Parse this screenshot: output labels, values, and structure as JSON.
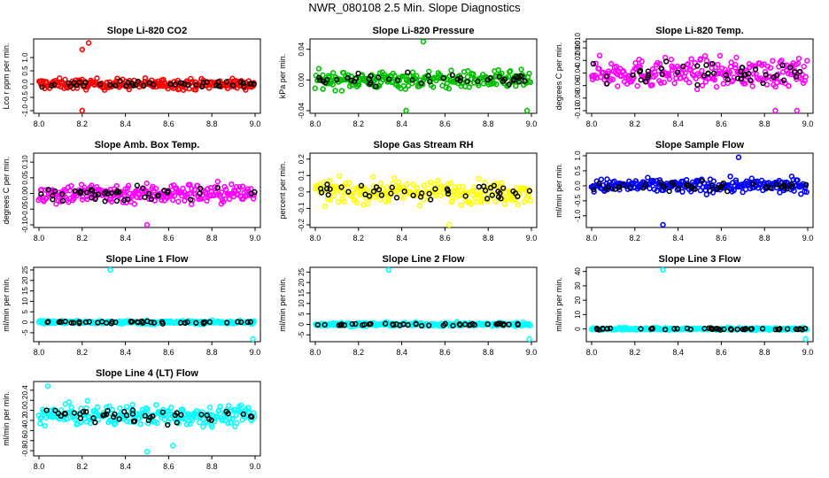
{
  "page_title": "NWR_080108  2.5 Min. Slope Diagnostics",
  "chart_data": [
    {
      "type": "scatter",
      "title": "Slope Li-820 CO2",
      "ylabel": "Lco r ppm per min.",
      "color": "#ff0000",
      "xlim": [
        8.0,
        9.0
      ],
      "ylim": [
        -1.0,
        1.6
      ],
      "xticks": [
        "8.0",
        "8.2",
        "8.4",
        "8.6",
        "8.8",
        "9.0"
      ],
      "yticks": [
        {
          "v": -1.0,
          "t": "-1.0"
        },
        {
          "v": -0.5,
          "t": "-0.5"
        },
        {
          "v": 0.0,
          "t": "0.0"
        },
        {
          "v": 0.5,
          "t": "0.5"
        },
        {
          "v": 1.0,
          "t": "1.0"
        }
      ],
      "outliers": [
        {
          "x": 8.2,
          "y": 1.3
        },
        {
          "x": 8.23,
          "y": 1.55
        },
        {
          "x": 8.2,
          "y": -1.0
        }
      ],
      "center": 0.0,
      "spread": 0.35
    },
    {
      "type": "scatter",
      "title": "Slope Li-820 Pressure",
      "ylabel": "kPa per min.",
      "color": "#00c000",
      "xlim": [
        8.0,
        9.0
      ],
      "ylim": [
        -0.04,
        0.05
      ],
      "xticks": [
        "8.0",
        "8.2",
        "8.4",
        "8.6",
        "8.8",
        "9.0"
      ],
      "yticks": [
        {
          "v": -0.04,
          "t": "-0.04"
        },
        {
          "v": 0.0,
          "t": "0.00"
        },
        {
          "v": 0.04,
          "t": "0.04"
        }
      ],
      "outliers": [
        {
          "x": 8.5,
          "y": 0.05
        },
        {
          "x": 8.42,
          "y": -0.04
        },
        {
          "x": 8.98,
          "y": -0.04
        }
      ],
      "center": 0.0,
      "spread": 0.02
    },
    {
      "type": "scatter",
      "title": "Slope Li-820 Temp.",
      "ylabel": "degrees C per min.",
      "color": "#ff00ff",
      "xlim": [
        8.0,
        9.0
      ],
      "ylim": [
        -0.1,
        0.01
      ],
      "xticks": [
        "8.0",
        "8.2",
        "8.4",
        "8.6",
        "8.8",
        "9.0"
      ],
      "yticks": [
        {
          "v": -0.1,
          "t": "-0.10"
        },
        {
          "v": -0.08,
          "t": "-0.08"
        },
        {
          "v": -0.06,
          "t": "-0.06"
        },
        {
          "v": -0.04,
          "t": "-0.04"
        },
        {
          "v": -0.02,
          "t": "-0.02"
        },
        {
          "v": 0.0,
          "t": "0.00"
        },
        {
          "v": 0.01,
          "t": "0.010"
        }
      ],
      "outliers": [
        {
          "x": 8.85,
          "y": -0.1
        },
        {
          "x": 8.95,
          "y": -0.1
        }
      ],
      "center": -0.04,
      "spread": 0.04
    },
    {
      "type": "scatter",
      "title": "Slope Amb. Box Temp.",
      "ylabel": "degrees C per min.",
      "color": "#ff00ff",
      "xlim": [
        8.0,
        9.0
      ],
      "ylim": [
        -0.1,
        0.12
      ],
      "xticks": [
        "8.0",
        "8.2",
        "8.4",
        "8.6",
        "8.8",
        "9.0"
      ],
      "yticks": [
        {
          "v": -0.1,
          "t": "-0.10"
        },
        {
          "v": -0.05,
          "t": "-0.05"
        },
        {
          "v": 0.0,
          "t": "0.00"
        },
        {
          "v": 0.05,
          "t": "0.05"
        },
        {
          "v": 0.1,
          "t": "0.10"
        }
      ],
      "outliers": [
        {
          "x": 8.5,
          "y": -0.1
        }
      ],
      "center": 0.0,
      "spread": 0.06
    },
    {
      "type": "scatter",
      "title": "Slope Gas Stream RH",
      "ylabel": "percent per min.",
      "color": "#ffff00",
      "xlim": [
        8.0,
        9.0
      ],
      "ylim": [
        -0.2,
        0.22
      ],
      "xticks": [
        "8.0",
        "8.2",
        "8.4",
        "8.6",
        "8.8",
        "9.0"
      ],
      "yticks": [
        {
          "v": -0.2,
          "t": "-0.2"
        },
        {
          "v": -0.1,
          "t": "-0.1"
        },
        {
          "v": 0.0,
          "t": "0.0"
        },
        {
          "v": 0.1,
          "t": "0.1"
        },
        {
          "v": 0.2,
          "t": "0.2"
        }
      ],
      "outliers": [
        {
          "x": 8.62,
          "y": -0.2
        }
      ],
      "center": 0.0,
      "spread": 0.12
    },
    {
      "type": "scatter",
      "title": "Slope Sample Flow",
      "ylabel": "ml/min per min.",
      "color": "#0000ff",
      "xlim": [
        8.0,
        9.0
      ],
      "ylim": [
        -1.3,
        1.0
      ],
      "xticks": [
        "8.0",
        "8.2",
        "8.4",
        "8.6",
        "8.8",
        "9.0"
      ],
      "yticks": [
        {
          "v": -1.0,
          "t": "-1.0"
        },
        {
          "v": -0.5,
          "t": "-0.5"
        },
        {
          "v": 0.0,
          "t": "0.0"
        },
        {
          "v": 0.5,
          "t": "0.5"
        },
        {
          "v": 1.0,
          "t": "1.0"
        }
      ],
      "outliers": [
        {
          "x": 8.33,
          "y": -1.3
        },
        {
          "x": 8.68,
          "y": 0.95
        }
      ],
      "center": 0.0,
      "spread": 0.4
    },
    {
      "type": "scatter",
      "title": "Slope Line 1 Flow",
      "ylabel": "ml/min per min.",
      "color": "#00ffff",
      "xlim": [
        8.0,
        9.0
      ],
      "ylim": [
        -8,
        25
      ],
      "xticks": [
        "8.0",
        "8.2",
        "8.4",
        "8.6",
        "8.8",
        "9.0"
      ],
      "yticks": [
        {
          "v": -5,
          "t": "-5"
        },
        {
          "v": 0,
          "t": "0"
        },
        {
          "v": 5,
          "t": "5"
        },
        {
          "v": 10,
          "t": "10"
        },
        {
          "v": 15,
          "t": "15"
        },
        {
          "v": 20,
          "t": "20"
        },
        {
          "v": 25,
          "t": "25"
        }
      ],
      "outliers": [
        {
          "x": 8.33,
          "y": 25
        },
        {
          "x": 8.99,
          "y": -8
        }
      ],
      "center": 0.0,
      "spread": 1.5
    },
    {
      "type": "scatter",
      "title": "Slope Line 2 Flow",
      "ylabel": "ml/min per min.",
      "color": "#00ffff",
      "xlim": [
        8.0,
        9.0
      ],
      "ylim": [
        -7,
        26
      ],
      "xticks": [
        "8.0",
        "8.2",
        "8.4",
        "8.6",
        "8.8",
        "9.0"
      ],
      "yticks": [
        {
          "v": -5,
          "t": "-5"
        },
        {
          "v": 0,
          "t": "0"
        },
        {
          "v": 5,
          "t": "5"
        },
        {
          "v": 10,
          "t": "10"
        },
        {
          "v": 15,
          "t": "15"
        },
        {
          "v": 20,
          "t": "20"
        },
        {
          "v": 25,
          "t": "25"
        }
      ],
      "outliers": [
        {
          "x": 8.34,
          "y": 26
        },
        {
          "x": 8.99,
          "y": -7
        }
      ],
      "center": 0.0,
      "spread": 1.5
    },
    {
      "type": "scatter",
      "title": "Slope Line 3 Flow",
      "ylabel": "ml/min per min.",
      "color": "#00ffff",
      "xlim": [
        8.0,
        9.0
      ],
      "ylim": [
        -7,
        41
      ],
      "xticks": [
        "8.0",
        "8.2",
        "8.4",
        "8.6",
        "8.8",
        "9.0"
      ],
      "yticks": [
        {
          "v": 0,
          "t": "0"
        },
        {
          "v": 10,
          "t": "10"
        },
        {
          "v": 20,
          "t": "20"
        },
        {
          "v": 30,
          "t": "30"
        },
        {
          "v": 40,
          "t": "40"
        }
      ],
      "outliers": [
        {
          "x": 8.33,
          "y": 41
        },
        {
          "x": 8.99,
          "y": -7
        }
      ],
      "center": 0.0,
      "spread": 1.5
    },
    {
      "type": "scatter",
      "title": "Slope Line 4 (LT) Flow",
      "ylabel": "ml/min per min.",
      "color": "#00ffff",
      "xlim": [
        8.0,
        9.0
      ],
      "ylim": [
        -0.85,
        0.52
      ],
      "xticks": [
        "8.0",
        "8.2",
        "8.4",
        "8.6",
        "8.8",
        "9.0"
      ],
      "yticks": [
        {
          "v": -0.8,
          "t": "-0.8"
        },
        {
          "v": -0.6,
          "t": "-0.6"
        },
        {
          "v": -0.4,
          "t": "-0.4"
        },
        {
          "v": -0.2,
          "t": "-0.2"
        },
        {
          "v": 0.0,
          "t": "0.0"
        },
        {
          "v": 0.2,
          "t": "0.2"
        },
        {
          "v": 0.4,
          "t": "0.4"
        }
      ],
      "outliers": [
        {
          "x": 8.5,
          "y": -0.82
        },
        {
          "x": 8.62,
          "y": -0.7
        },
        {
          "x": 8.04,
          "y": 0.48
        }
      ],
      "center": -0.1,
      "spread": 0.35
    }
  ]
}
